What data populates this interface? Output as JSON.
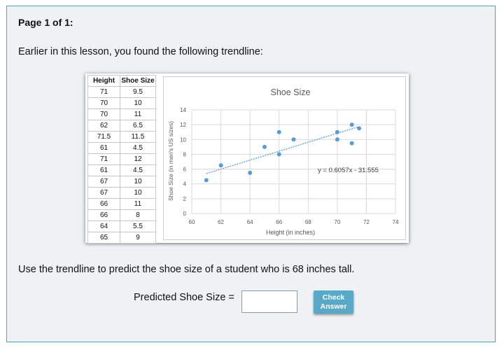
{
  "page": {
    "title": "Page 1 of 1:"
  },
  "intro_text": "Earlier in this lesson, you found the following trendline:",
  "table": {
    "headers": [
      "Height",
      "Shoe Size"
    ],
    "rows": [
      [
        "71",
        "9.5"
      ],
      [
        "70",
        "10"
      ],
      [
        "70",
        "11"
      ],
      [
        "62",
        "6.5"
      ],
      [
        "71.5",
        "11.5"
      ],
      [
        "61",
        "4.5"
      ],
      [
        "71",
        "12"
      ],
      [
        "61",
        "4.5"
      ],
      [
        "67",
        "10"
      ],
      [
        "67",
        "10"
      ],
      [
        "66",
        "11"
      ],
      [
        "66",
        "8"
      ],
      [
        "64",
        "5.5"
      ],
      [
        "65",
        "9"
      ]
    ]
  },
  "chart_data": {
    "type": "scatter",
    "title": "Shoe Size",
    "xlabel": "Height (in inches)",
    "ylabel": "Shoe Size (in men's US sizes)",
    "xlim": [
      60,
      74
    ],
    "ylim": [
      0,
      14
    ],
    "x_ticks": [
      60,
      62,
      64,
      66,
      68,
      70,
      72,
      74
    ],
    "y_ticks": [
      0,
      2,
      4,
      6,
      8,
      10,
      12,
      14
    ],
    "grid": true,
    "points": [
      {
        "x": 61,
        "y": 4.5
      },
      {
        "x": 62,
        "y": 6.5
      },
      {
        "x": 64,
        "y": 5.5
      },
      {
        "x": 65,
        "y": 9
      },
      {
        "x": 66,
        "y": 11
      },
      {
        "x": 66,
        "y": 8
      },
      {
        "x": 67,
        "y": 10
      },
      {
        "x": 70,
        "y": 11
      },
      {
        "x": 70,
        "y": 10
      },
      {
        "x": 71,
        "y": 12
      },
      {
        "x": 71,
        "y": 9.5
      },
      {
        "x": 71.5,
        "y": 11.5
      }
    ],
    "trendline": {
      "slope": 0.6057,
      "intercept": -31.555,
      "x_range": [
        61,
        71.5
      ],
      "label": "y = 0.6057x - 31.555"
    },
    "colors": {
      "points": "#5b9bd5",
      "trendline": "#5b9bd5",
      "grid": "#d9d9d9"
    }
  },
  "question": {
    "prompt": "Use the trendline to predict the shoe size of a student who is 68 inches tall."
  },
  "answer": {
    "label": "Predicted Shoe Size =",
    "value": ""
  },
  "check_button": {
    "line1": "Check",
    "line2": "Answer",
    "color": "#58a8c8"
  }
}
